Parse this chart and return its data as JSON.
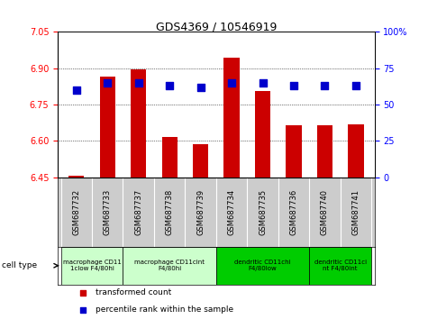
{
  "title": "GDS4369 / 10546919",
  "samples": [
    "GSM687732",
    "GSM687733",
    "GSM687737",
    "GSM687738",
    "GSM687739",
    "GSM687734",
    "GSM687735",
    "GSM687736",
    "GSM687740",
    "GSM687741"
  ],
  "transformed_count": [
    6.455,
    6.865,
    6.895,
    6.615,
    6.585,
    6.945,
    6.805,
    6.665,
    6.665,
    6.67
  ],
  "percentile_rank": [
    60,
    65,
    65,
    63,
    62,
    65,
    65,
    63,
    63,
    63
  ],
  "ylim_left": [
    6.45,
    7.05
  ],
  "ylim_right": [
    0,
    100
  ],
  "yticks_left": [
    6.45,
    6.6,
    6.75,
    6.9,
    7.05
  ],
  "yticks_right": [
    0,
    25,
    50,
    75,
    100
  ],
  "ytick_labels_right": [
    "0",
    "25",
    "50",
    "75",
    "100%"
  ],
  "bar_color": "#cc0000",
  "dot_color": "#0000cc",
  "grid_color": "#000000",
  "cell_type_groups": [
    {
      "label": "macrophage CD11\n1clow F4/80hi",
      "start": 0,
      "end": 2,
      "color": "#ccffcc"
    },
    {
      "label": "macrophage CD11cint\nF4/80hi",
      "start": 2,
      "end": 5,
      "color": "#ccffcc"
    },
    {
      "label": "dendritic CD11chi\nF4/80low",
      "start": 5,
      "end": 8,
      "color": "#00cc00"
    },
    {
      "label": "dendritic CD11ci\nnt F4/80int",
      "start": 8,
      "end": 10,
      "color": "#00cc00"
    }
  ],
  "legend_items": [
    {
      "label": "transformed count",
      "color": "#cc0000",
      "marker": "s"
    },
    {
      "label": "percentile rank within the sample",
      "color": "#0000cc",
      "marker": "s"
    }
  ],
  "bar_width": 0.5,
  "dot_size": 30,
  "xtick_bg_color": "#cccccc",
  "cell_type_label": "cell type"
}
